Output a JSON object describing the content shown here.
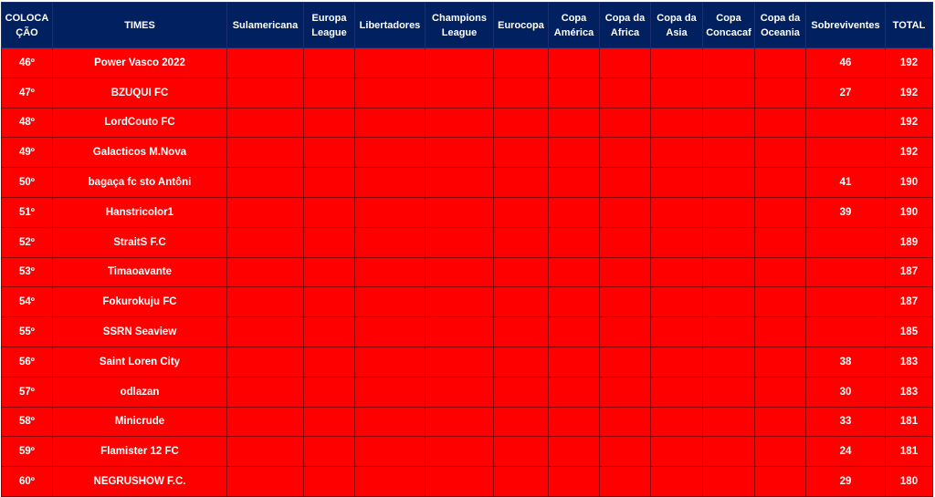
{
  "table": {
    "headers": [
      "COLOCA ÇÃO",
      "TIMES",
      "Sulamericana",
      "Europa League",
      "Libertadores",
      "Champions League",
      "Eurocopa",
      "Copa América",
      "Copa da Africa",
      "Copa da Asia",
      "Copa Concacaf",
      "Copa da Oceania",
      "Sobreviventes",
      "TOTAL"
    ],
    "rows": [
      {
        "pos": "46º",
        "team": "Power Vasco 2022",
        "sobreviventes": "46",
        "total": "192"
      },
      {
        "pos": "47º",
        "team": "BZUQUI FC",
        "sobreviventes": "27",
        "total": "192"
      },
      {
        "pos": "48º",
        "team": "LordCouto FC",
        "sobreviventes": "",
        "total": "192"
      },
      {
        "pos": "49º",
        "team": "Galacticos M.Nova",
        "sobreviventes": "",
        "total": "192"
      },
      {
        "pos": "50º",
        "team": "bagaça fc sto Antôni",
        "sobreviventes": "41",
        "total": "190"
      },
      {
        "pos": "51º",
        "team": "Hanstricolor1",
        "sobreviventes": "39",
        "total": "190"
      },
      {
        "pos": "52º",
        "team": "StraitS F.C",
        "sobreviventes": "",
        "total": "189"
      },
      {
        "pos": "53º",
        "team": "Timaoavante",
        "sobreviventes": "",
        "total": "187"
      },
      {
        "pos": "54º",
        "team": "Fokurokuju FC",
        "sobreviventes": "",
        "total": "187"
      },
      {
        "pos": "55º",
        "team": "SSRN Seaview",
        "sobreviventes": "",
        "total": "185"
      },
      {
        "pos": "56º",
        "team": "Saint Loren City",
        "sobreviventes": "38",
        "total": "183"
      },
      {
        "pos": "57º",
        "team": "odlazan",
        "sobreviventes": "30",
        "total": "183"
      },
      {
        "pos": "58º",
        "team": "Minicrude",
        "sobreviventes": "33",
        "total": "181"
      },
      {
        "pos": "59º",
        "team": "Flamister 12 FC",
        "sobreviventes": "24",
        "total": "181"
      },
      {
        "pos": "60º",
        "team": "NEGRUSHOW F.C.",
        "sobreviventes": "29",
        "total": "180"
      }
    ]
  },
  "colors": {
    "header_bg": "#002060",
    "row_bg": "#ff0000",
    "text": "#ffffff"
  }
}
